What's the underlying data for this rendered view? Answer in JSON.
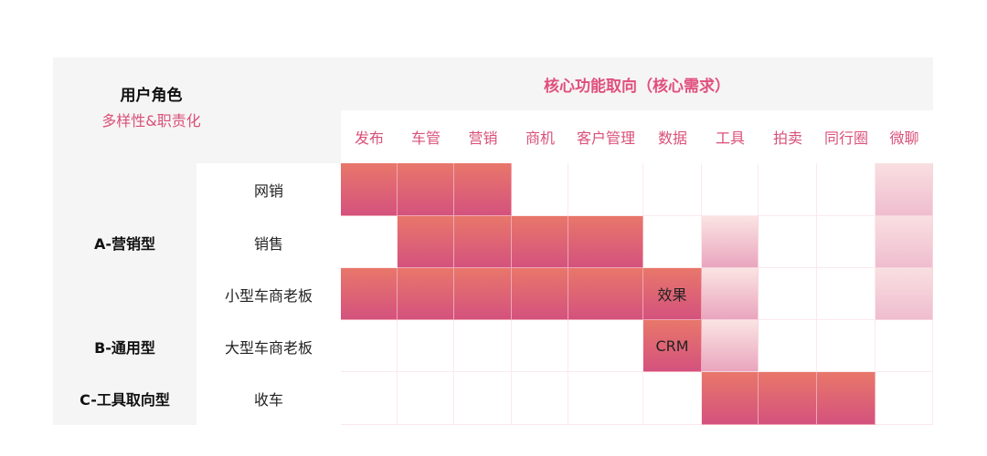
{
  "header": {
    "role_title": "用户角色",
    "role_subtitle": "多样性&职责化",
    "core_title": "核心功能取向（核心需求）"
  },
  "columns": [
    "发布",
    "车管",
    "营销",
    "商机",
    "客户管理",
    "数据",
    "工具",
    "拍卖",
    "同行圈",
    "微聊"
  ],
  "groups": [
    {
      "label": "A-营销型",
      "row": 1
    },
    {
      "label": "B-通用型",
      "row": 3
    },
    {
      "label": "C-工具取向型",
      "row": 4
    }
  ],
  "rows": [
    {
      "label": "网销",
      "cells": [
        "strong",
        "strong",
        "strong",
        "",
        "",
        "",
        "",
        "",
        "",
        "soft"
      ],
      "texts": [
        "",
        "",
        "",
        "",
        "",
        "",
        "",
        "",
        "",
        ""
      ]
    },
    {
      "label": "销售",
      "cells": [
        "",
        "strong",
        "strong",
        "strong",
        "strong",
        "",
        "light",
        "",
        "",
        "soft"
      ],
      "texts": [
        "",
        "",
        "",
        "",
        "",
        "",
        "",
        "",
        "",
        ""
      ]
    },
    {
      "label": "小型车商老板",
      "cells": [
        "strong",
        "strong",
        "strong",
        "strong",
        "strong",
        "strong",
        "light",
        "",
        "",
        "soft"
      ],
      "texts": [
        "",
        "",
        "",
        "",
        "",
        "效果",
        "",
        "",
        "",
        ""
      ]
    },
    {
      "label": "大型车商老板",
      "cells": [
        "",
        "",
        "",
        "",
        "",
        "strong",
        "light",
        "",
        "",
        ""
      ],
      "texts": [
        "",
        "",
        "",
        "",
        "",
        "CRM",
        "",
        "",
        "",
        ""
      ]
    },
    {
      "label": "收车",
      "cells": [
        "",
        "",
        "",
        "",
        "",
        "",
        "strong",
        "strong",
        "strong",
        ""
      ],
      "texts": [
        "",
        "",
        "",
        "",
        "",
        "",
        "",
        "",
        "",
        ""
      ]
    }
  ],
  "colors": {
    "strong_top": "#e8776a",
    "strong_bottom": "#d4527e",
    "accent": "#d9507a"
  }
}
